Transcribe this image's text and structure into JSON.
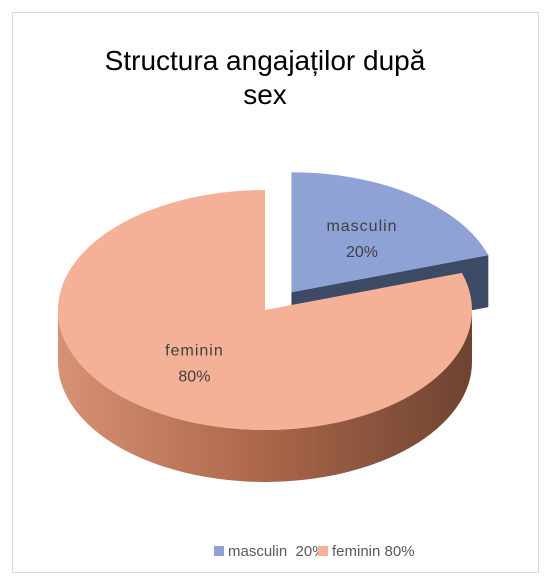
{
  "chart_data": {
    "type": "pie",
    "title": "Structura angajaților după sex",
    "categories": [
      "masculin",
      "feminin"
    ],
    "values": [
      20,
      80
    ],
    "value_labels": [
      "20%",
      "80%"
    ],
    "colors": [
      "#8fa2d6",
      "#f4b197"
    ],
    "side_colors": [
      "#3c4a66",
      "#b06a4c"
    ],
    "legend": [
      "masculin  20%",
      "feminin 80%"
    ],
    "legend_position": "bottom",
    "exploded": [
      0
    ]
  }
}
